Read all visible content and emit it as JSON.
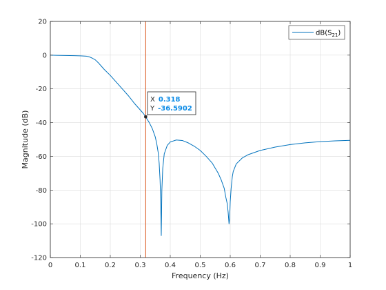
{
  "chart_data": {
    "type": "line",
    "xlabel": "Frequency (Hz)",
    "ylabel": "Magnitude (dB)",
    "xlim": [
      0,
      1
    ],
    "ylim": [
      -120,
      20
    ],
    "xticks": [
      0,
      0.1,
      0.2,
      0.3,
      0.4,
      0.5,
      0.6,
      0.7,
      0.8,
      0.9,
      1
    ],
    "xtick_labels": [
      "0",
      "0.1",
      "0.2",
      "0.3",
      "0.4",
      "0.5",
      "0.6",
      "0.7",
      "0.8",
      "0.9",
      "1"
    ],
    "yticks": [
      -120,
      -100,
      -80,
      -60,
      -40,
      -20,
      0,
      20
    ],
    "ytick_labels": [
      "-120",
      "-100",
      "-80",
      "-60",
      "-40",
      "-20",
      "0",
      "20"
    ],
    "grid": true,
    "legend_position": "top-right",
    "series": [
      {
        "name": "dB(S21)",
        "name_main": "dB(S",
        "name_sub": "21",
        "name_close": ")",
        "color": "#0072bd",
        "x": [
          0,
          0.02,
          0.05,
          0.08,
          0.1,
          0.12,
          0.13,
          0.14,
          0.15,
          0.16,
          0.17,
          0.18,
          0.2,
          0.22,
          0.24,
          0.26,
          0.28,
          0.3,
          0.31,
          0.318,
          0.33,
          0.34,
          0.35,
          0.355,
          0.36,
          0.363,
          0.366,
          0.368,
          0.37,
          0.372,
          0.375,
          0.38,
          0.39,
          0.4,
          0.42,
          0.44,
          0.46,
          0.48,
          0.5,
          0.52,
          0.54,
          0.56,
          0.57,
          0.58,
          0.585,
          0.59,
          0.593,
          0.596,
          0.598,
          0.6,
          0.603,
          0.607,
          0.61,
          0.62,
          0.64,
          0.66,
          0.7,
          0.75,
          0.8,
          0.85,
          0.9,
          0.95,
          1.0
        ],
        "y": [
          0,
          -0.1,
          -0.2,
          -0.3,
          -0.4,
          -0.6,
          -1.0,
          -1.8,
          -2.8,
          -4.5,
          -6.5,
          -8.5,
          -12,
          -16,
          -20,
          -24,
          -28.5,
          -32.5,
          -34.5,
          -36.59,
          -40,
          -43.5,
          -48.5,
          -52.5,
          -58,
          -64,
          -74,
          -85,
          -107,
          -80,
          -67,
          -58.5,
          -53.5,
          -51.5,
          -50.3,
          -50.6,
          -52,
          -54,
          -56.5,
          -60,
          -64,
          -70,
          -74,
          -79,
          -84,
          -88,
          -93,
          -100,
          -97,
          -87,
          -79,
          -72,
          -69,
          -64.5,
          -61,
          -59,
          -56.5,
          -54.5,
          -53,
          -52,
          -51.3,
          -50.8,
          -50.5
        ]
      }
    ],
    "vertical_marker": {
      "x": 0.318,
      "color": "#d95319"
    },
    "data_tip": {
      "x": 0.318,
      "y": -36.5902,
      "x_label": "X",
      "y_label": "Y",
      "x_value": "0.318",
      "y_value": "-36.5902",
      "value_color": "#0a8ae6"
    }
  }
}
